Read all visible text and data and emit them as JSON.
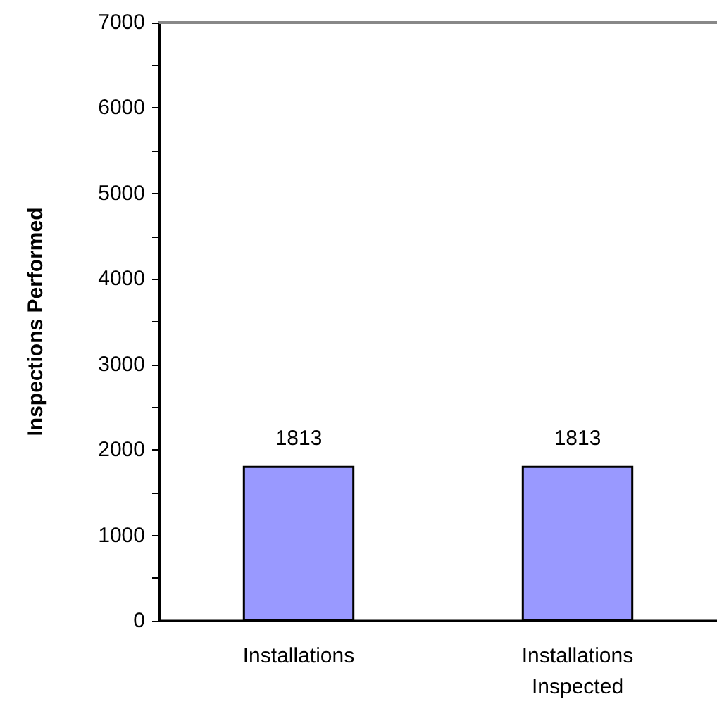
{
  "chart_data": {
    "type": "bar",
    "ylabel": "Inspections Performed",
    "categories": [
      "Installations",
      "Installations\nInspected"
    ],
    "values": [
      1813,
      1813
    ],
    "color": "#9999ff",
    "data_labels": true,
    "ylim": [
      0,
      7000
    ],
    "yticks": [
      0,
      {
        "value": 500,
        "label": null
      },
      1000,
      {
        "value": 1500,
        "label": null
      },
      2000,
      {
        "value": 2500,
        "label": null
      },
      3000,
      {
        "value": 3500,
        "label": null
      },
      4000,
      {
        "value": 4500,
        "label": null
      },
      5000,
      {
        "value": 5500,
        "label": null
      },
      6000,
      {
        "value": 6500,
        "label": null
      },
      7000
    ],
    "grid": false
  }
}
